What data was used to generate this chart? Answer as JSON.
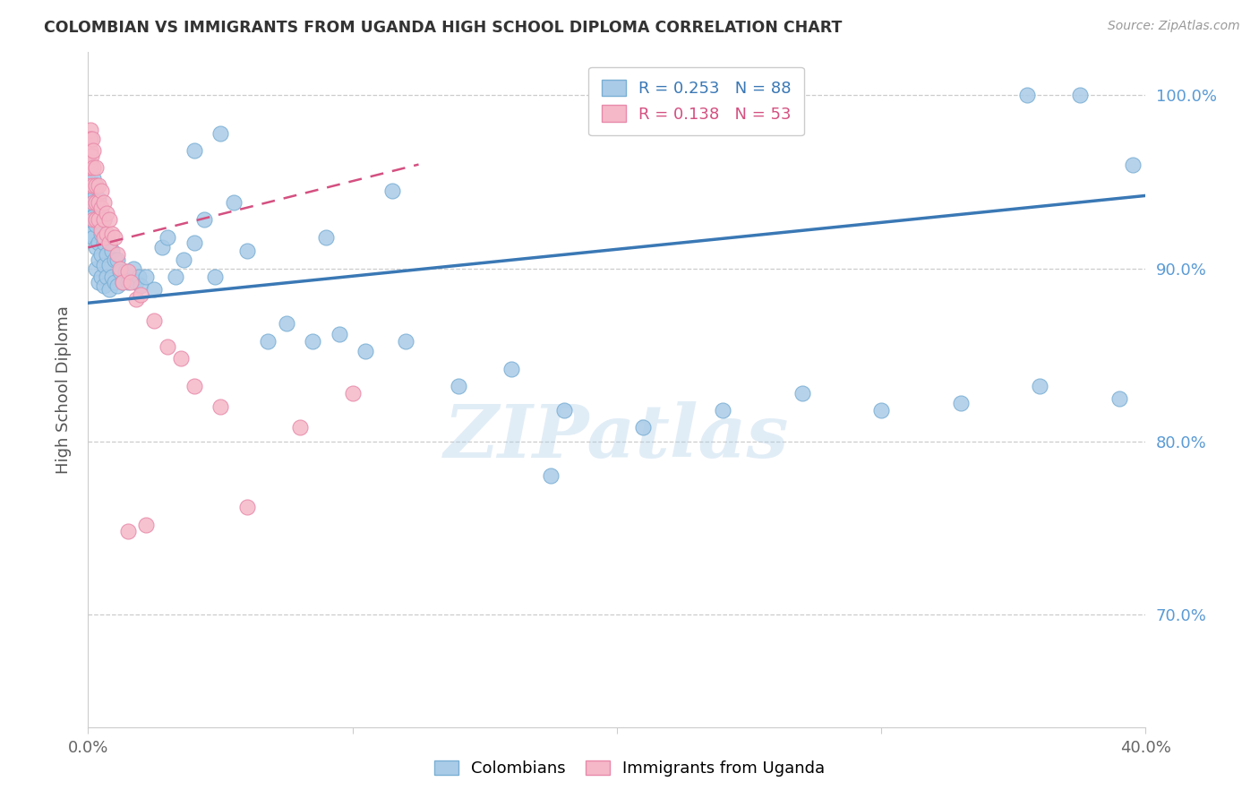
{
  "title": "COLOMBIAN VS IMMIGRANTS FROM UGANDA HIGH SCHOOL DIPLOMA CORRELATION CHART",
  "source": "Source: ZipAtlas.com",
  "ylabel": "High School Diploma",
  "x_min": 0.0,
  "x_max": 0.4,
  "y_min": 0.635,
  "y_max": 1.025,
  "y_ticks": [
    0.7,
    0.8,
    0.9,
    1.0
  ],
  "y_tick_labels": [
    "70.0%",
    "80.0%",
    "90.0%",
    "100.0%"
  ],
  "legend_r1": "0.253",
  "legend_n1": "88",
  "legend_r2": "0.138",
  "legend_n2": "53",
  "blue_color": "#aacbe8",
  "blue_edge_color": "#7aafd4",
  "blue_line_color": "#3a78b5",
  "pink_color": "#f5b8c8",
  "pink_edge_color": "#e88aaa",
  "pink_line_color": "#d45080",
  "watermark": "ZIPatlas",
  "legend_label1": "Colombians",
  "legend_label2": "Immigrants from Uganda",
  "blue_scatter_x": [
    0.0005,
    0.0006,
    0.0008,
    0.001,
    0.001,
    0.001,
    0.0015,
    0.0015,
    0.002,
    0.002,
    0.002,
    0.002,
    0.0025,
    0.0025,
    0.003,
    0.003,
    0.003,
    0.003,
    0.003,
    0.004,
    0.004,
    0.004,
    0.004,
    0.004,
    0.005,
    0.005,
    0.005,
    0.005,
    0.006,
    0.006,
    0.006,
    0.006,
    0.007,
    0.007,
    0.007,
    0.008,
    0.008,
    0.008,
    0.009,
    0.009,
    0.01,
    0.01,
    0.011,
    0.011,
    0.012,
    0.013,
    0.014,
    0.015,
    0.016,
    0.017,
    0.018,
    0.019,
    0.02,
    0.022,
    0.025,
    0.028,
    0.03,
    0.033,
    0.036,
    0.04,
    0.044,
    0.048,
    0.055,
    0.06,
    0.068,
    0.075,
    0.085,
    0.095,
    0.105,
    0.12,
    0.14,
    0.16,
    0.18,
    0.21,
    0.24,
    0.27,
    0.3,
    0.33,
    0.36,
    0.39,
    0.355,
    0.375,
    0.395,
    0.04,
    0.05,
    0.09,
    0.115,
    0.175
  ],
  "blue_scatter_y": [
    0.935,
    0.94,
    0.928,
    0.942,
    0.932,
    0.92,
    0.945,
    0.93,
    0.952,
    0.94,
    0.93,
    0.918,
    0.942,
    0.928,
    0.948,
    0.938,
    0.925,
    0.912,
    0.9,
    0.94,
    0.928,
    0.915,
    0.905,
    0.892,
    0.932,
    0.92,
    0.908,
    0.895,
    0.928,
    0.915,
    0.902,
    0.89,
    0.92,
    0.908,
    0.895,
    0.915,
    0.902,
    0.888,
    0.91,
    0.895,
    0.905,
    0.892,
    0.905,
    0.89,
    0.898,
    0.892,
    0.898,
    0.892,
    0.895,
    0.9,
    0.892,
    0.895,
    0.89,
    0.895,
    0.888,
    0.912,
    0.918,
    0.895,
    0.905,
    0.915,
    0.928,
    0.895,
    0.938,
    0.91,
    0.858,
    0.868,
    0.858,
    0.862,
    0.852,
    0.858,
    0.832,
    0.842,
    0.818,
    0.808,
    0.818,
    0.828,
    0.818,
    0.822,
    0.832,
    0.825,
    1.0,
    1.0,
    0.96,
    0.968,
    0.978,
    0.918,
    0.945,
    0.78
  ],
  "pink_scatter_x": [
    0.0004,
    0.0005,
    0.0006,
    0.0007,
    0.0008,
    0.0008,
    0.001,
    0.001,
    0.001,
    0.001,
    0.0012,
    0.0015,
    0.002,
    0.002,
    0.002,
    0.002,
    0.002,
    0.003,
    0.003,
    0.003,
    0.003,
    0.004,
    0.004,
    0.004,
    0.005,
    0.005,
    0.005,
    0.006,
    0.006,
    0.006,
    0.007,
    0.007,
    0.008,
    0.008,
    0.009,
    0.01,
    0.011,
    0.012,
    0.013,
    0.015,
    0.016,
    0.018,
    0.02,
    0.025,
    0.03,
    0.035,
    0.04,
    0.05,
    0.06,
    0.08,
    0.1,
    0.015,
    0.022
  ],
  "pink_scatter_y": [
    0.962,
    0.958,
    0.975,
    0.968,
    0.98,
    0.96,
    0.975,
    0.968,
    0.958,
    0.948,
    0.965,
    0.975,
    0.968,
    0.958,
    0.948,
    0.938,
    0.928,
    0.958,
    0.948,
    0.938,
    0.928,
    0.948,
    0.938,
    0.928,
    0.945,
    0.935,
    0.922,
    0.938,
    0.928,
    0.918,
    0.932,
    0.92,
    0.928,
    0.915,
    0.92,
    0.918,
    0.908,
    0.9,
    0.892,
    0.898,
    0.892,
    0.882,
    0.885,
    0.87,
    0.855,
    0.848,
    0.832,
    0.82,
    0.762,
    0.808,
    0.828,
    0.748,
    0.752
  ],
  "blue_trend_x": [
    0.0,
    0.4
  ],
  "blue_trend_y": [
    0.88,
    0.942
  ],
  "pink_trend_x": [
    0.0,
    0.125
  ],
  "pink_trend_y": [
    0.912,
    0.96
  ]
}
